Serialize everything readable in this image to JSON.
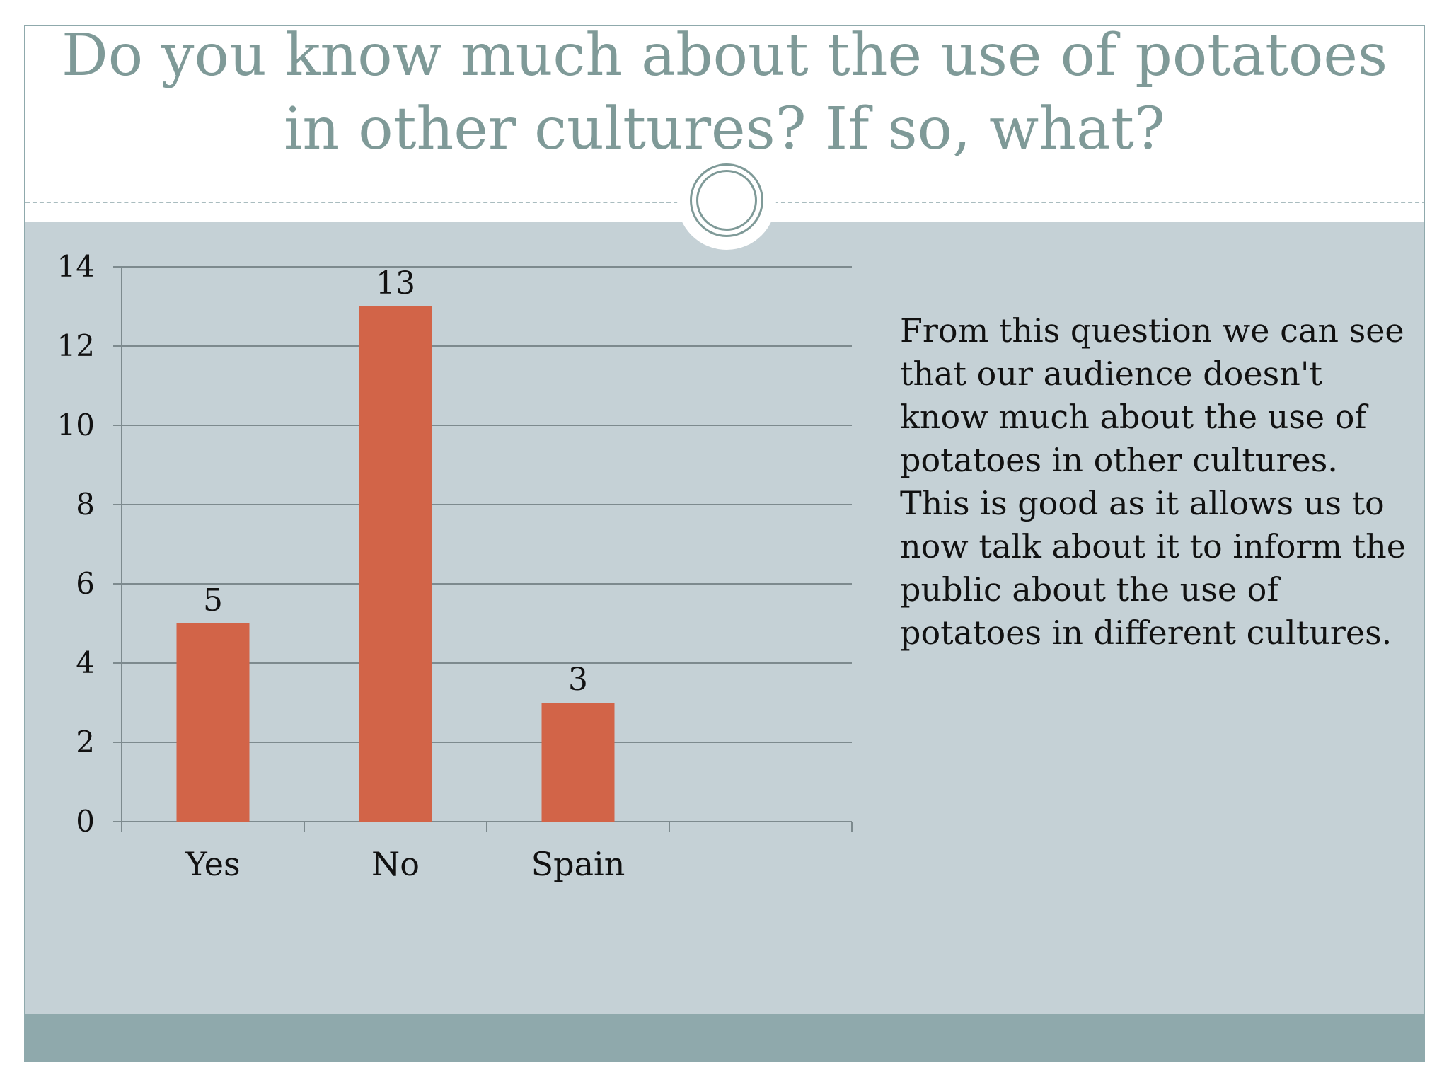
{
  "slide": {
    "title": "Do you know much about the use of potatoes in other cultures? If so, what?",
    "description": "From this question we can see that our audience doesn't know much about the use of potatoes in other cultures. This is good as it allows us to now talk about it to inform the public about the use of potatoes in different cultures."
  },
  "colors": {
    "bar": "#d26448",
    "title": "#7f9a98",
    "content_band": "#c5d1d6",
    "footer_band": "#8fa9ac"
  },
  "chart_data": {
    "type": "bar",
    "categories": [
      "Yes",
      "No",
      "Spain",
      ""
    ],
    "values": [
      5,
      13,
      3,
      null
    ],
    "data_labels": [
      "5",
      "13",
      "3",
      ""
    ],
    "title": "",
    "xlabel": "",
    "ylabel": "",
    "ylim": [
      0,
      14
    ],
    "yticks": [
      0,
      2,
      4,
      6,
      8,
      10,
      12,
      14
    ],
    "ytick_labels": [
      "0",
      "2",
      "4",
      "6",
      "8",
      "10",
      "12",
      "14"
    ],
    "grid": true,
    "legend": "none"
  }
}
